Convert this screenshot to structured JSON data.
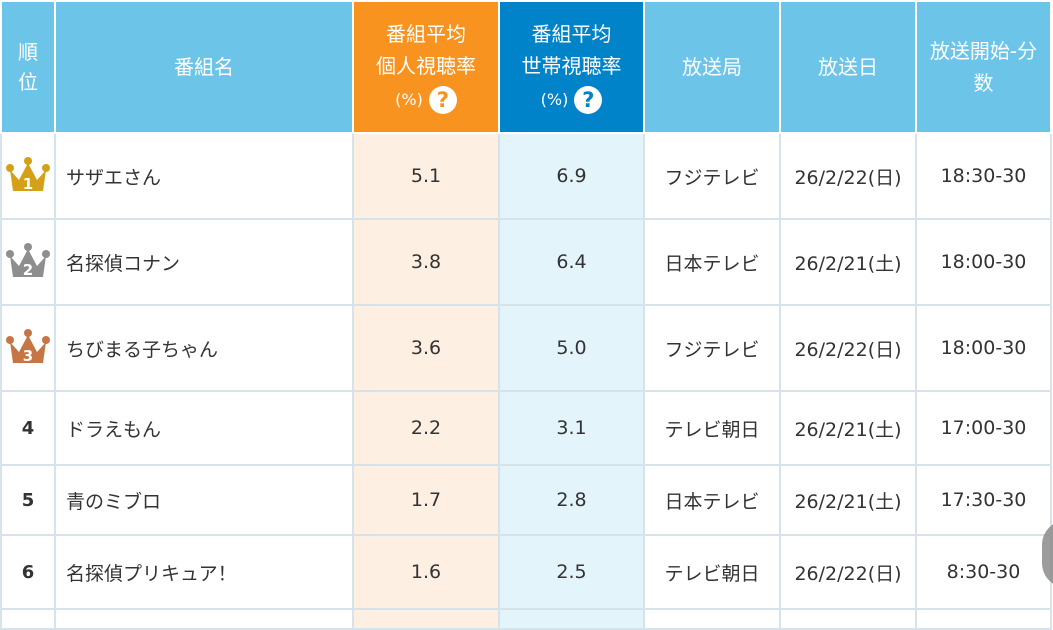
{
  "header": {
    "rank": "順位",
    "program": "番組名",
    "individual": {
      "line1": "番組平均",
      "line2": "個人視聴率",
      "unit": "(%)",
      "help": "?"
    },
    "household": {
      "line1": "番組平均",
      "line2": "世帯視聴率",
      "unit": "(%)",
      "help": "?"
    },
    "station": "放送局",
    "date": "放送日",
    "time": "放送開始-分数"
  },
  "colors": {
    "header": "#6cc5e9",
    "individual": "#f7931e",
    "household": "#0083c9",
    "gold": "#d4a017",
    "silver": "#8e8e8e",
    "bronze": "#c87545"
  },
  "rows": [
    {
      "rank": "1",
      "crown": "gold-crown-icon",
      "program": "サザエさん",
      "individual": "5.1",
      "household": "6.9",
      "station": "フジテレビ",
      "date": "26/2/22(日)",
      "time": "18:30-30"
    },
    {
      "rank": "2",
      "crown": "silver-crown-icon",
      "program": "名探偵コナン",
      "individual": "3.8",
      "household": "6.4",
      "station": "日本テレビ",
      "date": "26/2/21(土)",
      "time": "18:00-30"
    },
    {
      "rank": "3",
      "crown": "bronze-crown-icon",
      "program": "ちびまる子ちゃん",
      "individual": "3.6",
      "household": "5.0",
      "station": "フジテレビ",
      "date": "26/2/22(日)",
      "time": "18:00-30"
    },
    {
      "rank": "4",
      "program": "ドラえもん",
      "individual": "2.2",
      "household": "3.1",
      "station": "テレビ朝日",
      "date": "26/2/21(土)",
      "time": "17:00-30"
    },
    {
      "rank": "5",
      "program": "青のミブロ",
      "individual": "1.7",
      "household": "2.8",
      "station": "日本テレビ",
      "date": "26/2/21(土)",
      "time": "17:30-30"
    },
    {
      "rank": "6",
      "program": "名探偵プリキュア！",
      "individual": "1.6",
      "household": "2.5",
      "station": "テレビ朝日",
      "date": "26/2/22(日)",
      "time": "8:30-30"
    }
  ]
}
